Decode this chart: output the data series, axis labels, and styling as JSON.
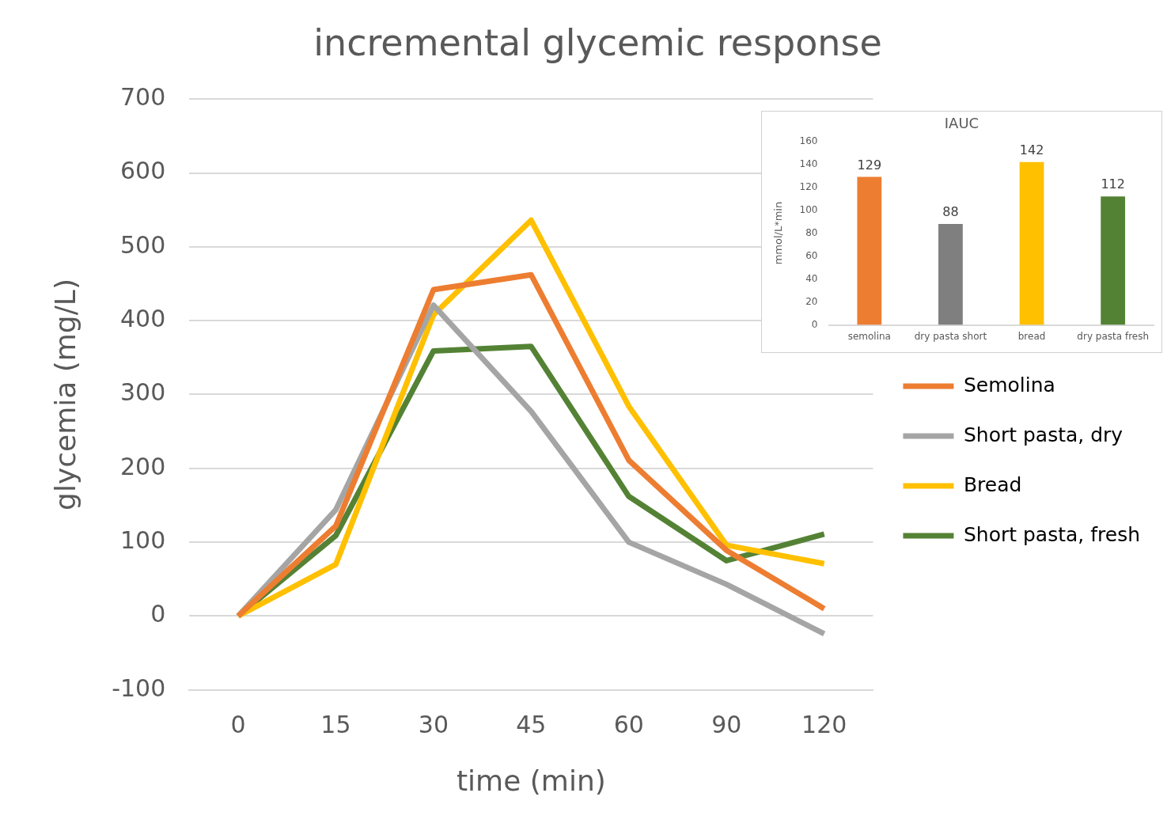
{
  "chart_data": [
    {
      "type": "line",
      "title": "incremental glycemic response",
      "xlabel": "time (min)",
      "ylabel": "glycemia (mg/L)",
      "categories": [
        "0",
        "15",
        "30",
        "45",
        "60",
        "90",
        "120"
      ],
      "series": [
        {
          "name": "Semolina",
          "color": "#ed7d31",
          "values": [
            0,
            122,
            442,
            462,
            211,
            89,
            10
          ]
        },
        {
          "name": "Short pasta, dry",
          "color": "#a5a5a5",
          "values": [
            0,
            144,
            421,
            277,
            100,
            43,
            -24
          ]
        },
        {
          "name": "Bread",
          "color": "#ffc000",
          "values": [
            0,
            70,
            408,
            536,
            284,
            96,
            71
          ]
        },
        {
          "name": "Short pasta, fresh",
          "color": "#548235",
          "values": [
            0,
            109,
            359,
            365,
            162,
            75,
            111
          ]
        }
      ],
      "ylim": [
        -100,
        700
      ],
      "yticks": [
        -100,
        0,
        100,
        200,
        300,
        400,
        500,
        600,
        700
      ],
      "grid": "y",
      "legend": "right",
      "marker": "none",
      "line_style": "solid"
    },
    {
      "type": "bar",
      "title": "IAUC",
      "ylabel": "mmol/L*min",
      "categories": [
        "semolina",
        "dry pasta short",
        "bread",
        "dry pasta fresh"
      ],
      "values": [
        129,
        88,
        142,
        112
      ],
      "colors": [
        "#ed7d31",
        "#7f7f7f",
        "#ffc000",
        "#548235"
      ],
      "ylim": [
        0,
        160
      ],
      "yticks": [
        0,
        20,
        40,
        60,
        80,
        100,
        120,
        140,
        160
      ],
      "data_labels": true,
      "grid": false
    }
  ]
}
